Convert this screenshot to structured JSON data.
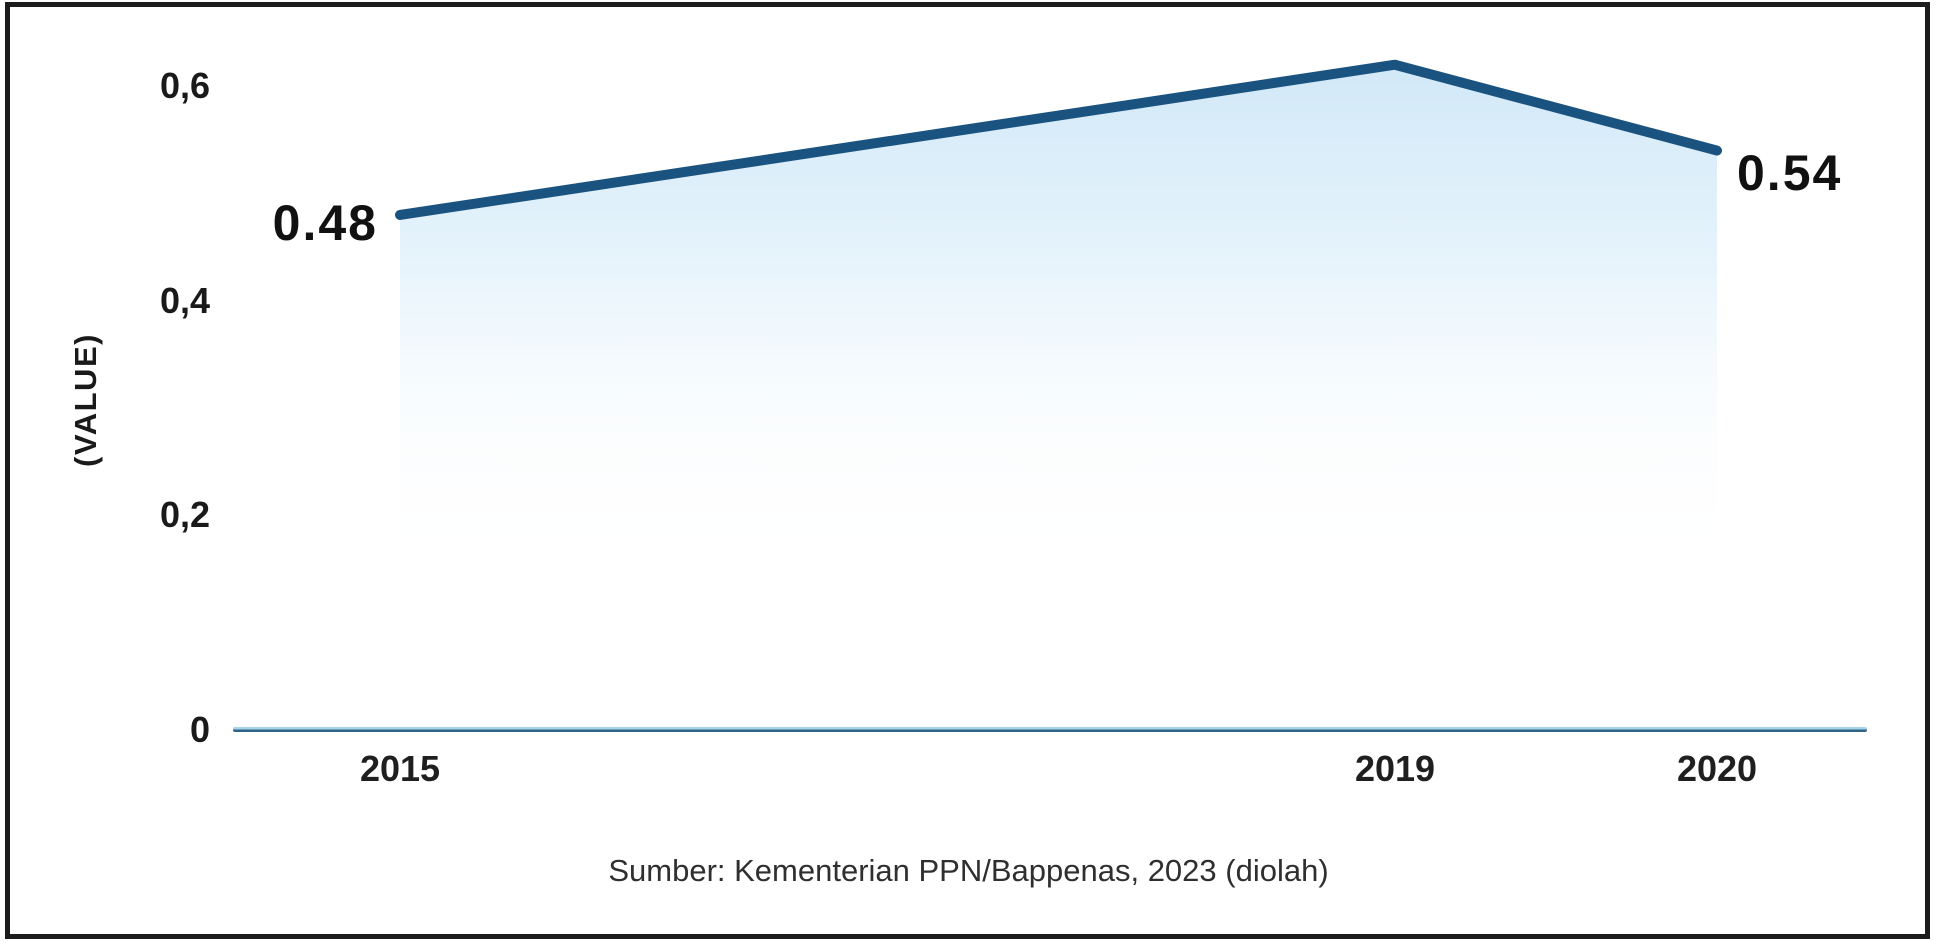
{
  "figure": {
    "source_caption": "Sumber: Kementerian PPN/Bappenas, 2023 (diolah)"
  },
  "chart_data": {
    "type": "area",
    "title": "",
    "categories": [
      "2015",
      "2019",
      "2020"
    ],
    "series": [
      {
        "name": "(VALUE)",
        "values": [
          0.48,
          0.62,
          0.54
        ]
      }
    ],
    "data_labels": [
      "0.48",
      "",
      "0.54"
    ],
    "ylabel": "(VALUE)",
    "xlabel": "",
    "y_ticks": [
      {
        "value": 0,
        "label": "0"
      },
      {
        "value": 0.2,
        "label": "0,2"
      },
      {
        "value": 0.4,
        "label": "0,4"
      },
      {
        "value": 0.6,
        "label": "0,6"
      }
    ],
    "ylim": [
      0,
      0.65
    ],
    "grid": false,
    "legend_position": "none",
    "note": "2019 peak value is unlabeled on the chart; approximately 0.62 read from axis",
    "colors": {
      "line": "#1b5380",
      "fill": "#cfe7f7",
      "axis_light": "#a6d3e9",
      "axis_dark": "#2f6486",
      "text": "#1a1a1a",
      "caption_text": "#2f2f2f",
      "border": "#1c1c1c"
    }
  }
}
